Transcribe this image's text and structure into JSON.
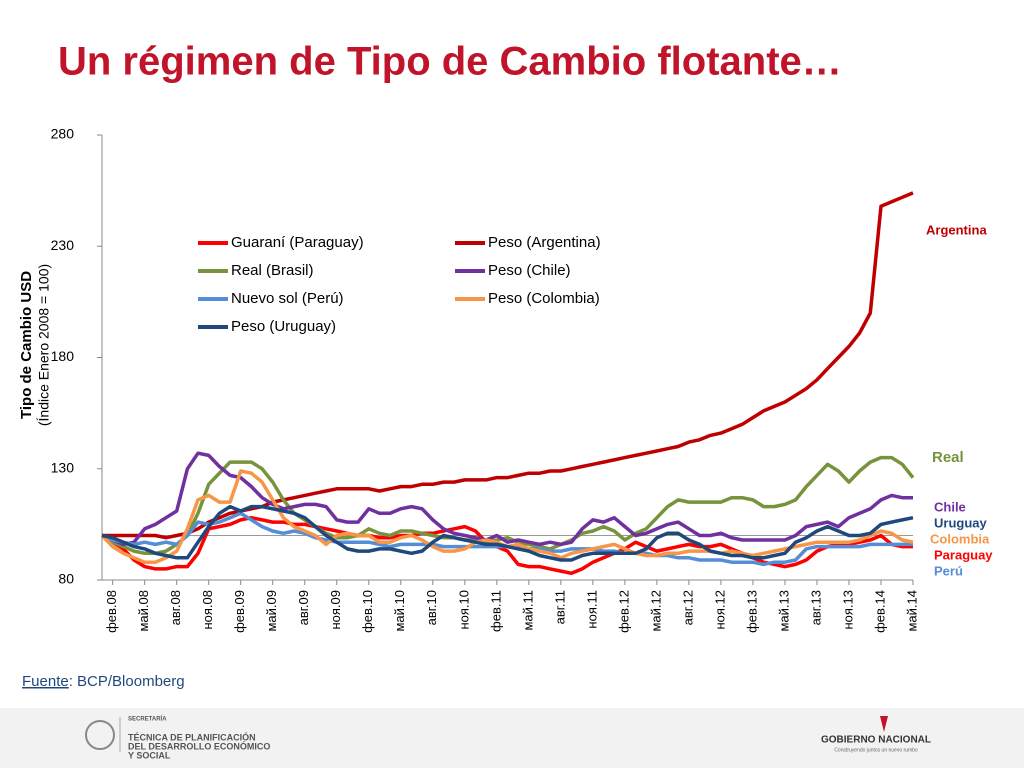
{
  "title": "Un régimen de Tipo de Cambio flotante…",
  "chart_data": {
    "type": "line",
    "y_label": "Tipo de Cambio USD",
    "y_sublabel": "(Índice Enero 2008 = 100)",
    "categories": [
      null,
      "фев.08",
      null,
      null,
      "май.08",
      null,
      null,
      "авг.08",
      null,
      null,
      "ноя.08",
      null,
      null,
      "фев.09",
      null,
      null,
      "май.09",
      null,
      null,
      "авг.09",
      null,
      null,
      "ноя.09",
      null,
      null,
      "фев.10",
      null,
      null,
      "май.10",
      null,
      null,
      "авг.10",
      null,
      null,
      "ноя.10",
      null,
      null,
      "фев.11",
      null,
      null,
      "май.11",
      null,
      null,
      "авг.11",
      null,
      null,
      "ноя.11",
      null,
      null,
      "фев.12",
      null,
      null,
      "май.12",
      null,
      null,
      "авг.12",
      null,
      null,
      "ноя.12",
      null,
      null,
      "фев.13",
      null,
      null,
      "май.13",
      null,
      null,
      "авг.13",
      null,
      null,
      "ноя.13",
      null,
      null,
      "фев.14",
      null,
      null,
      "май.14"
    ],
    "series": [
      {
        "name": "Guaraní (Paraguay)",
        "color": "#ff0000",
        "values": [
          100,
          97,
          94,
          89,
          86,
          85,
          85,
          86,
          86,
          92,
          103,
          104,
          105,
          107,
          108,
          107,
          106,
          106,
          105,
          105,
          104,
          103,
          102,
          101,
          100,
          100,
          99,
          99,
          100,
          100,
          101,
          101,
          102,
          103,
          104,
          102,
          97,
          95,
          93,
          87,
          86,
          86,
          85,
          84,
          83,
          85,
          88,
          90,
          92,
          94,
          97,
          95,
          93,
          94,
          95,
          96,
          95,
          95,
          96,
          94,
          92,
          90,
          88,
          87,
          86,
          87,
          89,
          93,
          95,
          96,
          96,
          97,
          98,
          100,
          96,
          95,
          95
        ]
      },
      {
        "name": "Peso (Argentina)",
        "color": "#c00000",
        "values": [
          100,
          100,
          100,
          100,
          100,
          100,
          99,
          100,
          101,
          103,
          106,
          108,
          110,
          111,
          112,
          113,
          115,
          116,
          117,
          118,
          119,
          120,
          121,
          121,
          121,
          121,
          120,
          121,
          122,
          122,
          123,
          123,
          124,
          124,
          125,
          125,
          125,
          126,
          126,
          127,
          128,
          128,
          129,
          129,
          130,
          131,
          132,
          133,
          134,
          135,
          136,
          137,
          138,
          139,
          140,
          142,
          143,
          145,
          146,
          148,
          150,
          153,
          156,
          158,
          160,
          163,
          166,
          170,
          175,
          180,
          185,
          191,
          200,
          248,
          250,
          252,
          254
        ]
      },
      {
        "name": "Real (Brasil)",
        "color": "#77933c",
        "values": [
          100,
          97,
          95,
          93,
          92,
          92,
          93,
          96,
          100,
          110,
          123,
          128,
          133,
          133,
          133,
          130,
          124,
          116,
          110,
          107,
          104,
          101,
          99,
          99,
          100,
          103,
          101,
          100,
          102,
          102,
          101,
          100,
          99,
          99,
          98,
          98,
          97,
          98,
          99,
          97,
          96,
          95,
          94,
          96,
          98,
          101,
          102,
          104,
          102,
          98,
          101,
          103,
          108,
          113,
          116,
          115,
          115,
          115,
          115,
          117,
          117,
          116,
          113,
          113,
          114,
          116,
          122,
          127,
          132,
          129,
          124,
          129,
          133,
          135,
          135,
          132,
          126
        ]
      },
      {
        "name": "Peso (Chile)",
        "color": "#7030a0",
        "values": [
          100,
          98,
          96,
          97,
          103,
          105,
          108,
          111,
          130,
          137,
          136,
          131,
          127,
          126,
          122,
          117,
          114,
          112,
          113,
          114,
          114,
          113,
          107,
          106,
          106,
          112,
          110,
          110,
          112,
          113,
          112,
          107,
          103,
          101,
          100,
          99,
          98,
          100,
          97,
          98,
          97,
          96,
          97,
          96,
          97,
          103,
          107,
          106,
          108,
          104,
          100,
          101,
          103,
          105,
          106,
          103,
          100,
          100,
          101,
          99,
          98,
          98,
          98,
          98,
          98,
          100,
          104,
          105,
          106,
          104,
          108,
          110,
          112,
          116,
          118,
          117,
          117
        ]
      },
      {
        "name": "Nuevo sol  (Perú)",
        "color": "#558ed5",
        "values": [
          100,
          98,
          97,
          96,
          97,
          96,
          97,
          96,
          100,
          106,
          105,
          106,
          108,
          110,
          107,
          104,
          102,
          101,
          102,
          101,
          99,
          98,
          97,
          97,
          97,
          97,
          96,
          95,
          96,
          96,
          96,
          96,
          95,
          95,
          95,
          95,
          95,
          95,
          95,
          95,
          94,
          94,
          93,
          93,
          94,
          94,
          94,
          93,
          93,
          92,
          92,
          92,
          91,
          91,
          90,
          90,
          89,
          89,
          89,
          88,
          88,
          88,
          87,
          88,
          88,
          89,
          94,
          95,
          95,
          95,
          95,
          95,
          96,
          96,
          96,
          96,
          96
        ]
      },
      {
        "name": "Peso (Colombia)",
        "color": "#f79646",
        "values": [
          100,
          95,
          92,
          90,
          88,
          88,
          90,
          93,
          103,
          116,
          118,
          115,
          115,
          129,
          128,
          124,
          116,
          108,
          104,
          102,
          100,
          96,
          100,
          101,
          100,
          100,
          97,
          97,
          99,
          100,
          98,
          95,
          93,
          93,
          94,
          97,
          98,
          97,
          95,
          96,
          94,
          93,
          92,
          90,
          92,
          93,
          94,
          95,
          96,
          94,
          92,
          91,
          91,
          92,
          92,
          93,
          93,
          93,
          92,
          93,
          92,
          91,
          92,
          93,
          94,
          95,
          96,
          97,
          97,
          97,
          97,
          98,
          100,
          102,
          101,
          98,
          97
        ]
      },
      {
        "name": "Peso (Uruguay)",
        "color": "#1f497d",
        "values": [
          100,
          99,
          97,
          95,
          94,
          92,
          91,
          90,
          90,
          97,
          104,
          110,
          113,
          111,
          113,
          113,
          112,
          111,
          110,
          108,
          104,
          100,
          97,
          94,
          93,
          93,
          94,
          94,
          93,
          92,
          93,
          97,
          100,
          99,
          98,
          97,
          96,
          96,
          95,
          94,
          93,
          91,
          90,
          89,
          89,
          91,
          92,
          92,
          92,
          92,
          92,
          94,
          99,
          101,
          101,
          98,
          96,
          93,
          92,
          91,
          91,
          90,
          90,
          91,
          92,
          97,
          99,
          102,
          104,
          102,
          100,
          100,
          101,
          105,
          106,
          107,
          108
        ]
      }
    ],
    "reference_line": 100,
    "ylim": [
      80,
      280
    ],
    "yticks": [
      80,
      130,
      180,
      230,
      280
    ],
    "annotations": [
      {
        "text": "Argentina",
        "color": "#c00000"
      },
      {
        "text": "Real",
        "color": "#77933c"
      },
      {
        "text": "Chile",
        "color": "#7030a0"
      },
      {
        "text": "Uruguay",
        "color": "#1f497d"
      },
      {
        "text": "Colombia",
        "color": "#f79646"
      },
      {
        "text": "Paraguay",
        "color": "#ff0000"
      },
      {
        "text": "Perú",
        "color": "#558ed5"
      }
    ]
  },
  "source_label": "Fuente",
  "source": ": BCP/Bloomberg",
  "footer": {
    "left": [
      "SECRETARÍA",
      "TÉCNICA DE PLANIFICACIÓN",
      "DEL DESARROLLO ECONÓMICO",
      "Y SOCIAL"
    ],
    "right": "GOBIERNO NACIONAL",
    "right_sub": "Construyendo juntos un nuevo rumbo"
  }
}
